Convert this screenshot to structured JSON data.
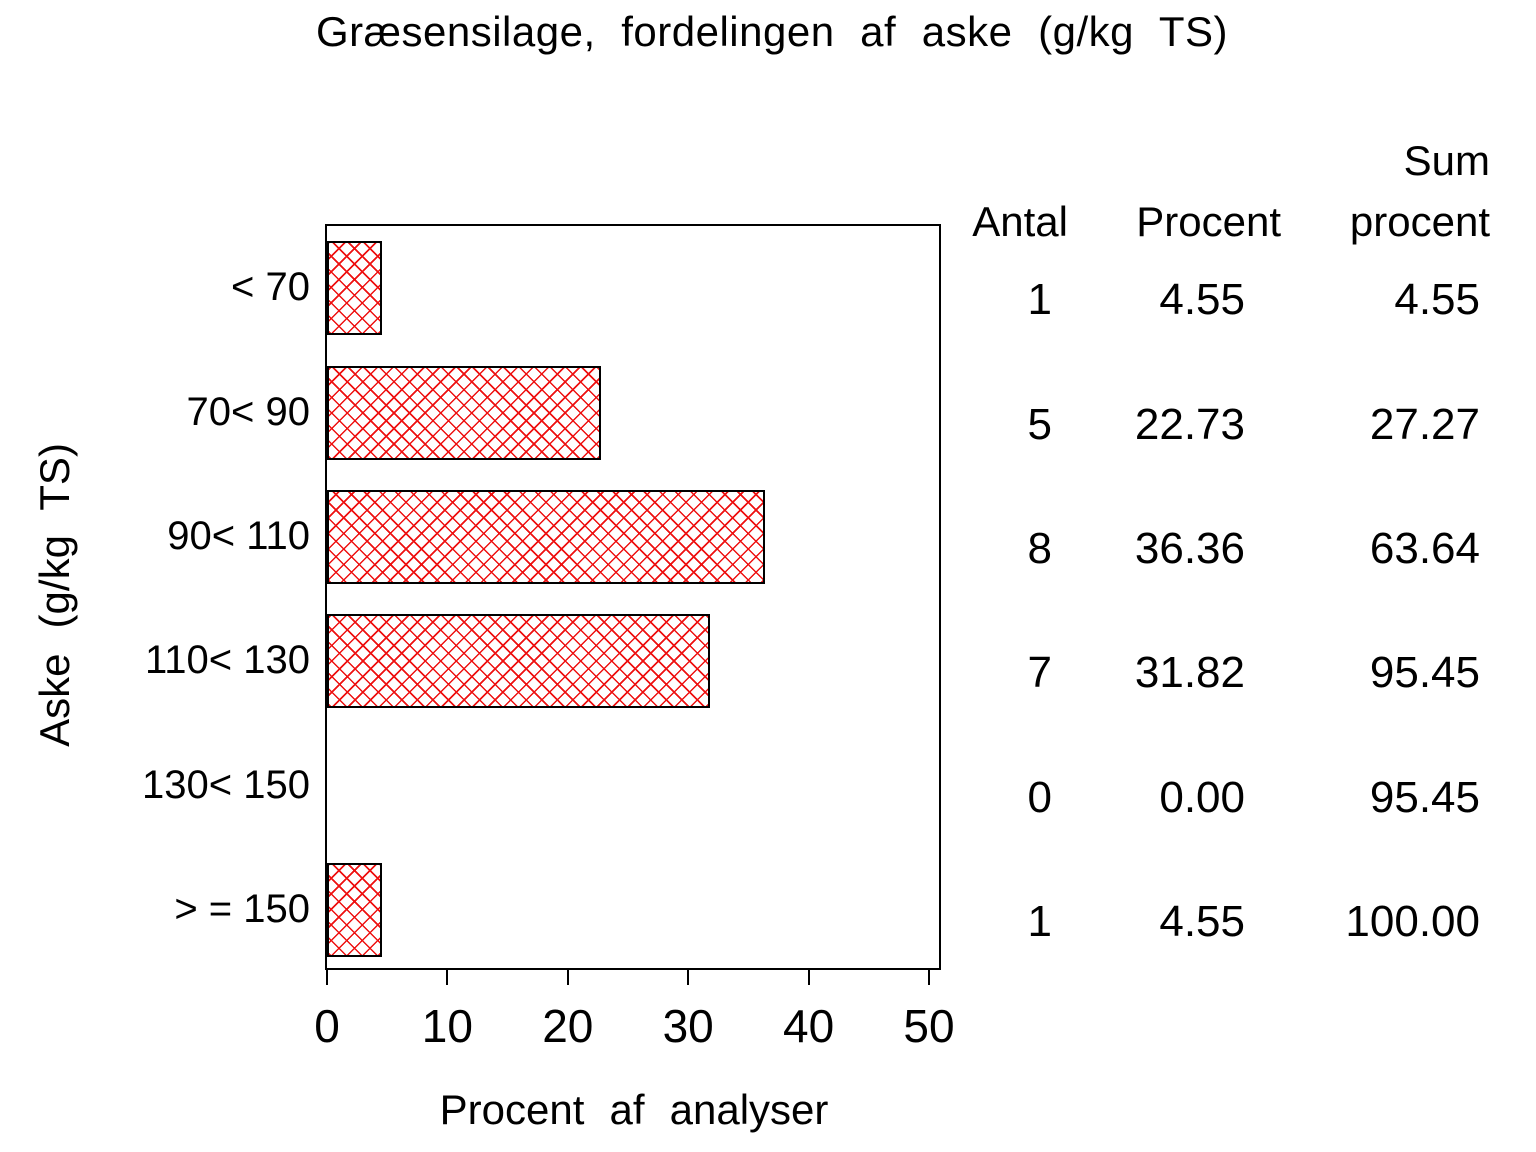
{
  "title": "Græsensilage, fordelingen af aske (g/kg TS)",
  "colors": {
    "bar_red": "#ee1111",
    "text": "#000000",
    "background": "#ffffff"
  },
  "chart_data": {
    "type": "bar",
    "orientation": "horizontal",
    "title": "Græsensilage, fordelingen af aske (g/kg TS)",
    "categories": [
      "< 70",
      "70< 90",
      "90< 110",
      "110< 130",
      "130< 150",
      "> = 150"
    ],
    "values": [
      4.55,
      22.73,
      36.36,
      31.82,
      0.0,
      4.55
    ],
    "xlabel": "Procent af analyser",
    "ylabel": "Aske (g/kg TS)",
    "xlim": [
      0,
      50
    ],
    "xticks": [
      0,
      10,
      20,
      30,
      40,
      50
    ],
    "grid": false,
    "bar_style": "red-crosshatch-pattern-black-outline"
  },
  "table": {
    "headers": {
      "antal": "Antal",
      "procent": "Procent",
      "sum_line1": "Sum",
      "sum_line2": "procent"
    },
    "rows": [
      {
        "antal": "1",
        "procent": "4.55",
        "sum": "4.55"
      },
      {
        "antal": "5",
        "procent": "22.73",
        "sum": "27.27"
      },
      {
        "antal": "8",
        "procent": "36.36",
        "sum": "63.64"
      },
      {
        "antal": "7",
        "procent": "31.82",
        "sum": "95.45"
      },
      {
        "antal": "0",
        "procent": "0.00",
        "sum": "95.45"
      },
      {
        "antal": "1",
        "procent": "4.55",
        "sum": "100.00"
      }
    ]
  }
}
